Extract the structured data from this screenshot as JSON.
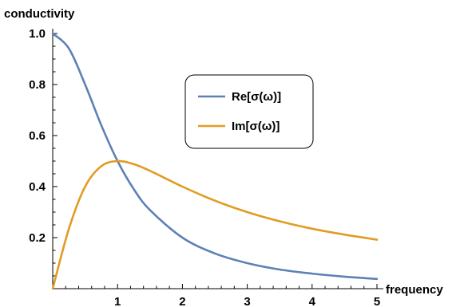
{
  "chart_data": {
    "type": "line",
    "xlabel": "frequency",
    "ylabel": "conductivity",
    "xlim": [
      0,
      5
    ],
    "ylim": [
      0,
      1.05
    ],
    "x_ticks": [
      1,
      2,
      3,
      4,
      5
    ],
    "x_tick_labels": [
      "1",
      "2",
      "3",
      "4",
      "5"
    ],
    "y_ticks": [
      0.2,
      0.4,
      0.6,
      0.8,
      1.0
    ],
    "y_tick_labels": [
      "0.2",
      "0.4",
      "0.6",
      "0.8",
      "1.0"
    ],
    "grid": false,
    "legend_position": "top-center",
    "series": [
      {
        "name": "Re[σ(ω)]",
        "color": "#5e81b5",
        "x": [
          0,
          0.25,
          0.5,
          0.75,
          1,
          1.25,
          1.5,
          2,
          2.5,
          3,
          3.5,
          4,
          4.5,
          5
        ],
        "y": [
          1.0,
          0.941,
          0.8,
          0.64,
          0.5,
          0.39,
          0.308,
          0.2,
          0.138,
          0.1,
          0.075,
          0.059,
          0.047,
          0.038
        ]
      },
      {
        "name": "Im[σ(ω)]",
        "color": "#e19c24",
        "x": [
          0,
          0.25,
          0.5,
          0.75,
          1,
          1.25,
          1.5,
          2,
          2.5,
          3,
          3.5,
          4,
          4.5,
          5
        ],
        "y": [
          0.0,
          0.235,
          0.4,
          0.48,
          0.5,
          0.488,
          0.462,
          0.4,
          0.345,
          0.3,
          0.264,
          0.235,
          0.212,
          0.192
        ]
      }
    ]
  }
}
